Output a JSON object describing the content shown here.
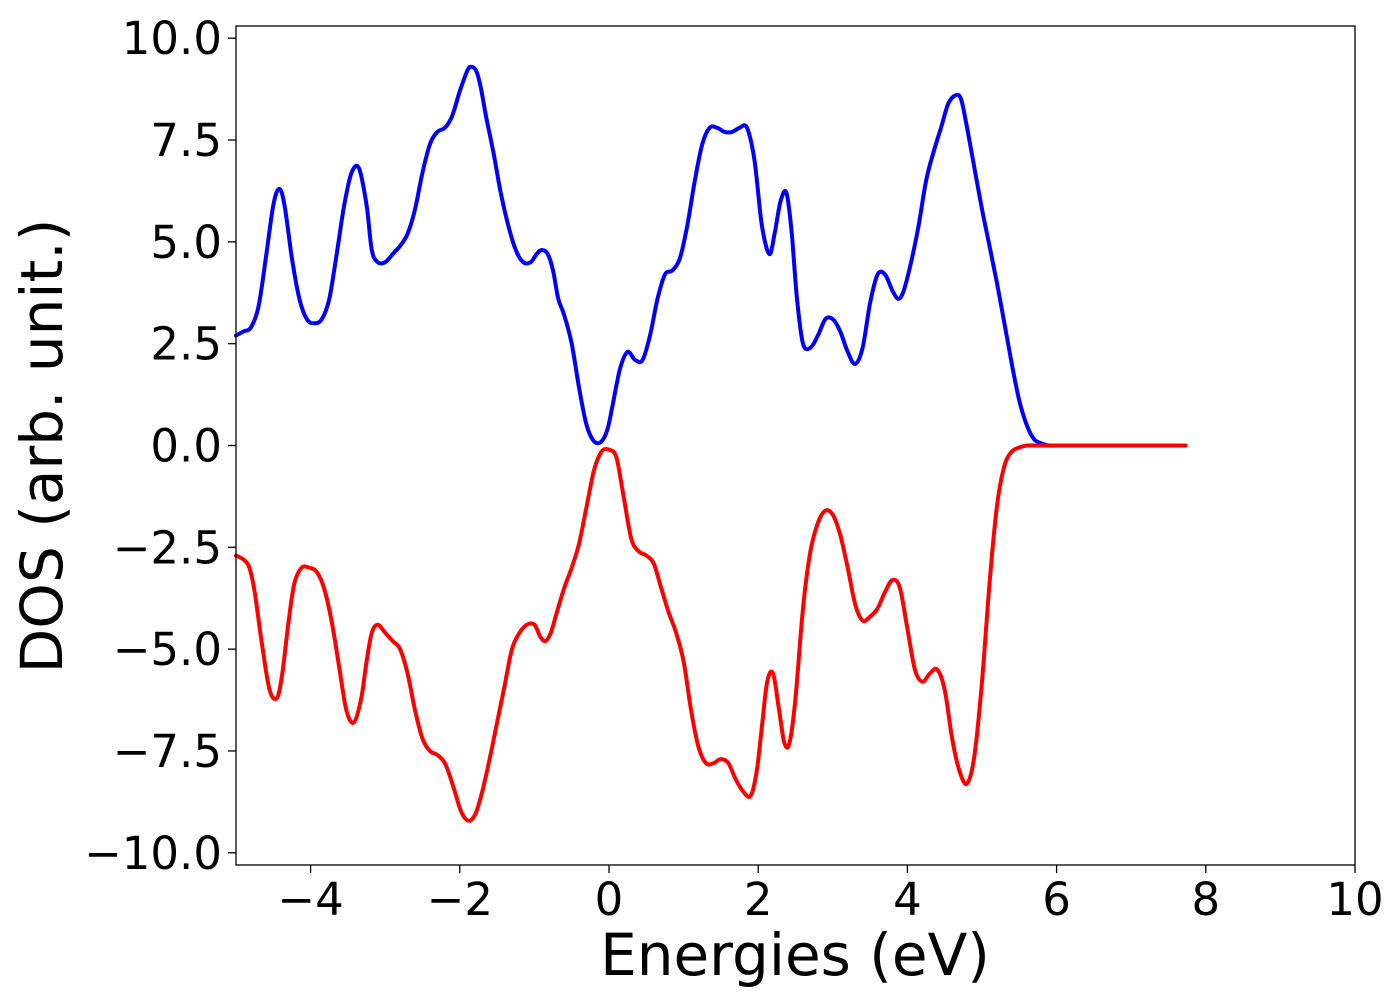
{
  "chart_data": {
    "type": "line",
    "title": "",
    "xlabel": "Energies (eV)",
    "ylabel": "DOS (arb. unit.)",
    "xlim": [
      -5,
      10
    ],
    "ylim": [
      -10.3,
      10.3
    ],
    "grid": false,
    "legend": "none",
    "xticks": [
      -4,
      -2,
      0,
      2,
      4,
      6,
      8,
      10
    ],
    "xtick_labels": [
      "−4",
      "−2",
      "0",
      "2",
      "4",
      "6",
      "8",
      "10"
    ],
    "yticks": [
      -10,
      -7.5,
      -5,
      -2.5,
      0,
      2.5,
      5,
      7.5,
      10
    ],
    "ytick_labels": [
      "−10.0",
      "−7.5",
      "−5.0",
      "−2.5",
      "0.0",
      "2.5",
      "5.0",
      "7.5",
      "10.0"
    ],
    "series": [
      {
        "color": "#0000ff",
        "x": [
          -5.0,
          -4.9,
          -4.8,
          -4.7,
          -4.6,
          -4.5,
          -4.42,
          -4.35,
          -4.25,
          -4.15,
          -4.05,
          -3.95,
          -3.85,
          -3.75,
          -3.65,
          -3.55,
          -3.45,
          -3.35,
          -3.25,
          -3.18,
          -3.1,
          -3.0,
          -2.9,
          -2.8,
          -2.7,
          -2.6,
          -2.5,
          -2.4,
          -2.3,
          -2.2,
          -2.1,
          -2.0,
          -1.9,
          -1.85,
          -1.78,
          -1.72,
          -1.65,
          -1.55,
          -1.45,
          -1.35,
          -1.25,
          -1.15,
          -1.05,
          -0.97,
          -0.9,
          -0.82,
          -0.75,
          -0.68,
          -0.6,
          -0.5,
          -0.4,
          -0.3,
          -0.2,
          -0.1,
          -0.02,
          0.05,
          0.15,
          0.25,
          0.35,
          0.45,
          0.55,
          0.65,
          0.75,
          0.85,
          0.95,
          1.05,
          1.15,
          1.25,
          1.35,
          1.45,
          1.55,
          1.65,
          1.75,
          1.85,
          1.95,
          2.05,
          2.15,
          2.22,
          2.3,
          2.38,
          2.45,
          2.52,
          2.6,
          2.7,
          2.8,
          2.9,
          3.0,
          3.1,
          3.2,
          3.3,
          3.4,
          3.5,
          3.6,
          3.7,
          3.8,
          3.88,
          3.95,
          4.05,
          4.15,
          4.25,
          4.35,
          4.45,
          4.55,
          4.65,
          4.72,
          4.8,
          4.9,
          5.0,
          5.1,
          5.2,
          5.3,
          5.4,
          5.5,
          5.6,
          5.7,
          5.8,
          5.9,
          6.0,
          6.1,
          6.3
        ],
        "y": [
          2.7,
          2.8,
          2.9,
          3.4,
          4.6,
          5.9,
          6.3,
          5.9,
          4.6,
          3.6,
          3.1,
          3.0,
          3.1,
          3.6,
          4.7,
          5.9,
          6.7,
          6.8,
          5.9,
          4.8,
          4.5,
          4.5,
          4.7,
          4.9,
          5.2,
          5.8,
          6.7,
          7.4,
          7.7,
          7.8,
          8.1,
          8.7,
          9.2,
          9.3,
          9.2,
          8.8,
          8.1,
          7.2,
          6.2,
          5.4,
          4.8,
          4.5,
          4.5,
          4.7,
          4.8,
          4.7,
          4.3,
          3.6,
          3.2,
          2.5,
          1.4,
          0.5,
          0.1,
          0.1,
          0.4,
          1.0,
          1.9,
          2.3,
          2.1,
          2.1,
          2.7,
          3.6,
          4.2,
          4.3,
          4.6,
          5.4,
          6.5,
          7.4,
          7.8,
          7.8,
          7.7,
          7.7,
          7.8,
          7.8,
          7.0,
          5.4,
          4.7,
          5.2,
          6.0,
          6.2,
          5.2,
          3.6,
          2.5,
          2.4,
          2.7,
          3.1,
          3.1,
          2.8,
          2.3,
          2.0,
          2.4,
          3.5,
          4.2,
          4.2,
          3.8,
          3.6,
          3.8,
          4.5,
          5.4,
          6.5,
          7.2,
          7.8,
          8.4,
          8.6,
          8.5,
          7.8,
          6.8,
          5.8,
          4.9,
          4.0,
          3.0,
          2.0,
          1.1,
          0.5,
          0.15,
          0.05,
          0.0,
          0.0,
          0.0,
          0.0
        ],
        "width": 4
      },
      {
        "color": "#ff0000",
        "x": [
          -5.0,
          -4.9,
          -4.82,
          -4.75,
          -4.65,
          -4.55,
          -4.45,
          -4.38,
          -4.3,
          -4.22,
          -4.12,
          -4.02,
          -3.92,
          -3.82,
          -3.72,
          -3.62,
          -3.52,
          -3.42,
          -3.32,
          -3.25,
          -3.18,
          -3.1,
          -3.0,
          -2.9,
          -2.8,
          -2.7,
          -2.6,
          -2.5,
          -2.4,
          -2.3,
          -2.2,
          -2.1,
          -2.0,
          -1.95,
          -1.9,
          -1.85,
          -1.78,
          -1.7,
          -1.6,
          -1.5,
          -1.4,
          -1.3,
          -1.2,
          -1.1,
          -1.0,
          -0.92,
          -0.85,
          -0.78,
          -0.7,
          -0.6,
          -0.5,
          -0.4,
          -0.3,
          -0.2,
          -0.1,
          0.0,
          0.1,
          0.2,
          0.3,
          0.4,
          0.5,
          0.6,
          0.7,
          0.8,
          0.9,
          1.0,
          1.1,
          1.2,
          1.3,
          1.4,
          1.5,
          1.6,
          1.7,
          1.8,
          1.9,
          1.98,
          2.05,
          2.12,
          2.2,
          2.28,
          2.35,
          2.42,
          2.5,
          2.6,
          2.7,
          2.8,
          2.9,
          3.0,
          3.1,
          3.2,
          3.3,
          3.4,
          3.5,
          3.6,
          3.7,
          3.8,
          3.9,
          4.0,
          4.1,
          4.2,
          4.3,
          4.4,
          4.5,
          4.6,
          4.7,
          4.8,
          4.9,
          5.0,
          5.1,
          5.2,
          5.3,
          5.4,
          5.5,
          5.6,
          5.7,
          5.8,
          6.0,
          6.5,
          7.0,
          7.5,
          7.73
        ],
        "y": [
          -2.7,
          -2.8,
          -3.0,
          -3.6,
          -4.9,
          -6.0,
          -6.2,
          -5.6,
          -4.4,
          -3.4,
          -3.0,
          -3.0,
          -3.1,
          -3.5,
          -4.3,
          -5.4,
          -6.5,
          -6.8,
          -6.2,
          -5.3,
          -4.6,
          -4.4,
          -4.6,
          -4.8,
          -5.0,
          -5.6,
          -6.5,
          -7.2,
          -7.5,
          -7.6,
          -7.8,
          -8.3,
          -8.9,
          -9.1,
          -9.2,
          -9.2,
          -9.0,
          -8.5,
          -7.7,
          -6.8,
          -5.9,
          -5.0,
          -4.6,
          -4.4,
          -4.4,
          -4.7,
          -4.8,
          -4.6,
          -4.1,
          -3.5,
          -3.0,
          -2.4,
          -1.5,
          -0.6,
          -0.15,
          -0.1,
          -0.3,
          -1.3,
          -2.3,
          -2.6,
          -2.7,
          -2.9,
          -3.5,
          -4.1,
          -4.6,
          -5.3,
          -6.5,
          -7.4,
          -7.8,
          -7.8,
          -7.7,
          -7.8,
          -8.2,
          -8.5,
          -8.6,
          -8.0,
          -6.9,
          -5.8,
          -5.6,
          -6.5,
          -7.3,
          -7.3,
          -6.2,
          -4.0,
          -2.6,
          -1.9,
          -1.6,
          -1.7,
          -2.2,
          -3.0,
          -3.9,
          -4.3,
          -4.2,
          -4.0,
          -3.6,
          -3.3,
          -3.5,
          -4.5,
          -5.5,
          -5.8,
          -5.6,
          -5.5,
          -6.0,
          -7.2,
          -8.0,
          -8.3,
          -7.6,
          -5.8,
          -3.4,
          -1.5,
          -0.5,
          -0.15,
          -0.05,
          0.0,
          0.0,
          0.0,
          0.0,
          0.0,
          0.0,
          0.0,
          0.0
        ],
        "width": 4
      }
    ]
  }
}
